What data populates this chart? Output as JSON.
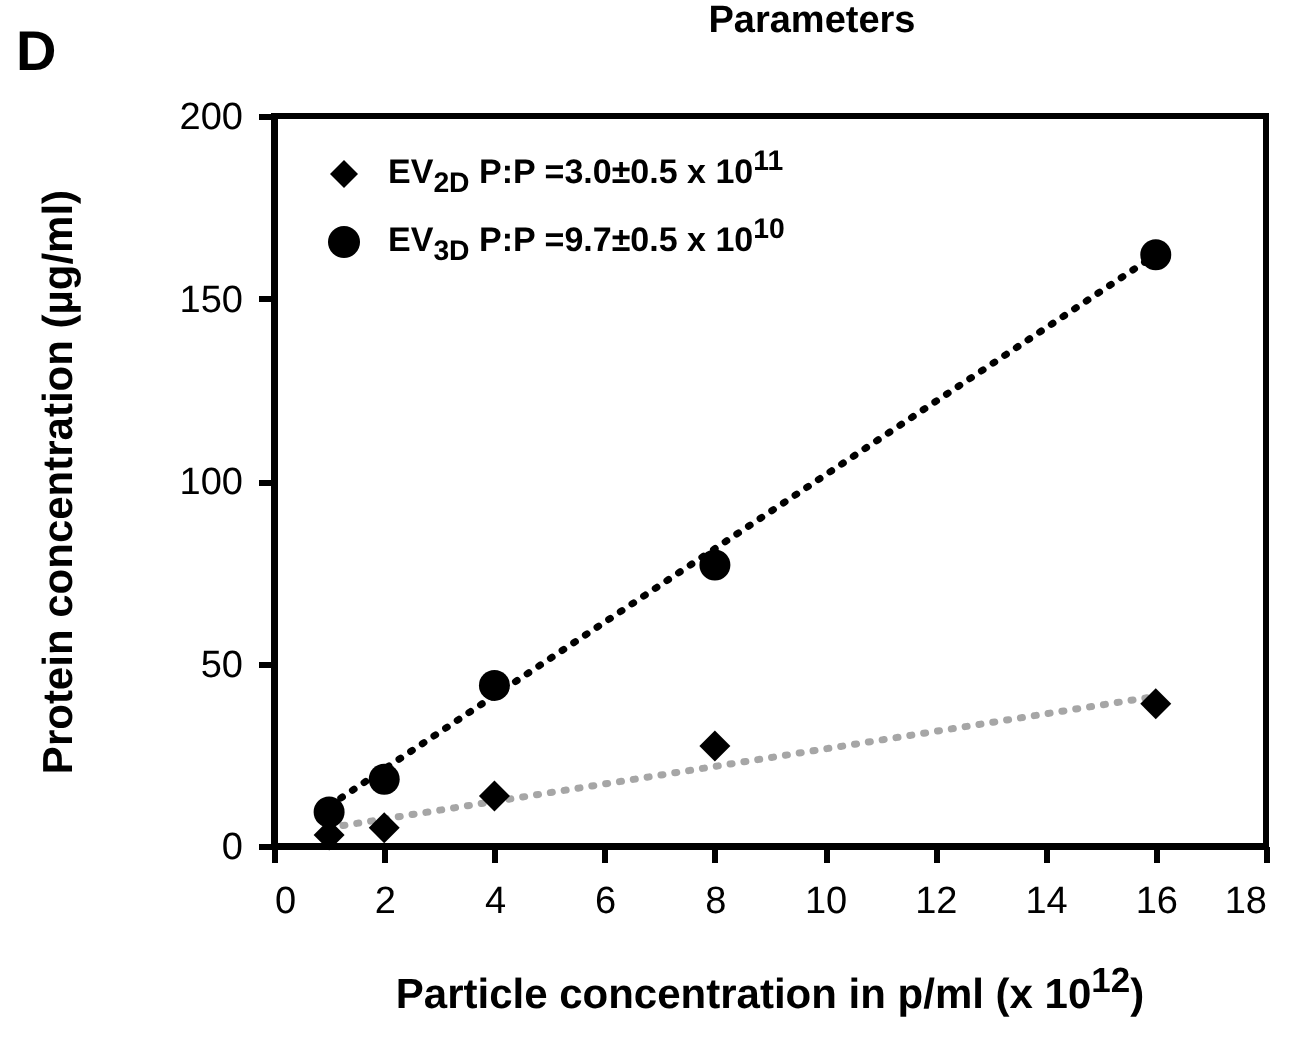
{
  "chart_data": {
    "type": "scatter",
    "title": "Parameters",
    "xlabel": "Particle concentration in p/ml (x 10$^{12}$)",
    "ylabel": "Protein concentration (µg/ml)",
    "annotations": [
      "D"
    ],
    "xlim": [
      0,
      18
    ],
    "xticks": [
      0,
      2,
      4,
      6,
      8,
      10,
      12,
      14,
      16,
      18
    ],
    "ylim": [
      0,
      200
    ],
    "yticks": [
      0,
      50,
      100,
      150,
      200
    ],
    "grid": false,
    "legend": "top left",
    "series": [
      {
        "type": "line",
        "x": [
          1,
          16
        ],
        "values": [
          5,
          41
        ],
        "color": "#a6a6a6",
        "line_style": "dotted",
        "marker": "none"
      },
      {
        "type": "line",
        "x": [
          1,
          16
        ],
        "values": [
          11,
          162
        ],
        "color": "#000000",
        "line_style": "dotted",
        "marker": "none"
      },
      {
        "name": "EV$_{2D}$ P:P =3.0±0.5 x 10$^{11}$",
        "x": [
          1,
          2,
          4,
          8,
          16
        ],
        "values": [
          3,
          5,
          13.7,
          27.4,
          39
        ],
        "color": "#000000",
        "marker": "diamond"
      },
      {
        "name": "EV$_{3D}$ P:P =9.7±0.5 x 10$^{10}$",
        "x": [
          1,
          2,
          4,
          8,
          16
        ],
        "values": [
          9.3,
          18.3,
          44,
          77,
          162
        ],
        "color": "#000000",
        "marker": "circle"
      }
    ]
  }
}
